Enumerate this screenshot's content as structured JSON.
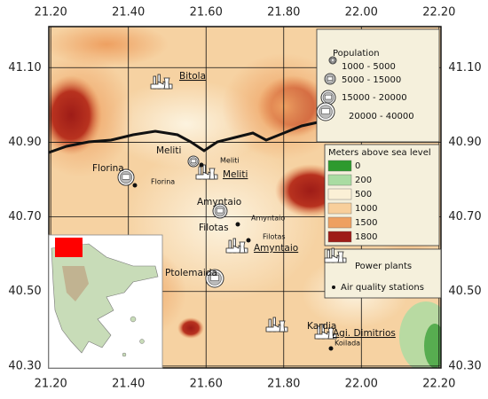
{
  "map": {
    "xlim": [
      21.195,
      22.205
    ],
    "ylim": [
      40.295,
      41.21
    ],
    "xticks": [
      {
        "value": 21.2,
        "label": "21.20"
      },
      {
        "value": 21.4,
        "label": "21.40"
      },
      {
        "value": 21.6,
        "label": "21.60"
      },
      {
        "value": 21.8,
        "label": "21.80"
      },
      {
        "value": 22.0,
        "label": "22.00"
      },
      {
        "value": 22.2,
        "label": "22.20"
      }
    ],
    "yticks": [
      {
        "value": 41.1,
        "label": "41.10"
      },
      {
        "value": 40.9,
        "label": "40.90"
      },
      {
        "value": 40.7,
        "label": "40.70"
      },
      {
        "value": 40.5,
        "label": "40.50"
      },
      {
        "value": 40.3,
        "label": "40.30"
      }
    ],
    "places": [
      "Bitola",
      "Meliti",
      "Meliti",
      "Meliti",
      "Florina",
      "Florina",
      "Amyntaio",
      "Amyntaio",
      "Filotas",
      "Filotas",
      "Amyntaio",
      "Ptolemaida",
      "Kardia",
      "Agi. Dimitrios",
      "Koilada"
    ]
  },
  "population_legend": {
    "title": "Population",
    "classes": [
      "1000 - 5000",
      "5000 - 15000",
      "15000 - 20000",
      "20000 - 40000"
    ]
  },
  "elevation_legend": {
    "title": "Meters above sea level",
    "classes": [
      0,
      200,
      500,
      1000,
      1500,
      1800
    ],
    "colors": [
      "#2e9a2e",
      "#a9dca2",
      "#fbf0d6",
      "#f8cf9b",
      "#eea061",
      "#9e1c17"
    ]
  },
  "symbols_legend": [
    "Power plants",
    "Air quality stations"
  ]
}
